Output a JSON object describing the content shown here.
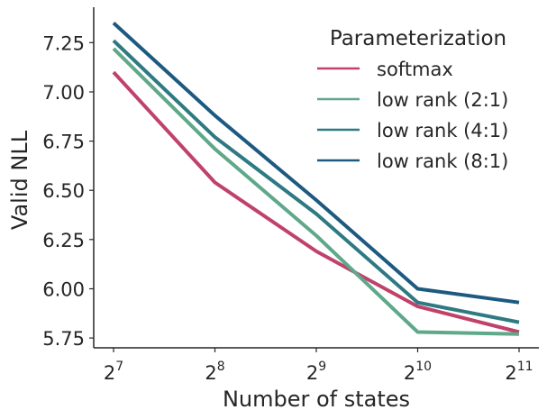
{
  "chart_data": {
    "type": "line",
    "title": "",
    "xlabel": "Number of states",
    "ylabel": "Valid NLL",
    "x_scale": "log2",
    "x": [
      128,
      256,
      512,
      1024,
      2048
    ],
    "x_tick_labels": [
      {
        "base": "2",
        "exp": "7"
      },
      {
        "base": "2",
        "exp": "8"
      },
      {
        "base": "2",
        "exp": "9"
      },
      {
        "base": "2",
        "exp": "10"
      },
      {
        "base": "2",
        "exp": "11"
      }
    ],
    "ylim": [
      5.7,
      7.43
    ],
    "y_ticks": [
      5.75,
      6.0,
      6.25,
      6.5,
      6.75,
      7.0,
      7.25
    ],
    "y_tick_labels": [
      "5.75",
      "6.00",
      "6.25",
      "6.50",
      "6.75",
      "7.00",
      "7.25"
    ],
    "grid": false,
    "legend": {
      "title": "Parameterization",
      "placement": "top-right"
    },
    "series": [
      {
        "name": "softmax",
        "color": "#c0426a",
        "values": [
          7.1,
          6.54,
          6.19,
          5.91,
          5.78
        ]
      },
      {
        "name": "low rank (2:1)",
        "color": "#5fa88a",
        "values": [
          7.22,
          6.71,
          6.27,
          5.78,
          5.77
        ]
      },
      {
        "name": "low rank (4:1)",
        "color": "#2e7a82",
        "values": [
          7.26,
          6.77,
          6.38,
          5.93,
          5.83
        ]
      },
      {
        "name": "low rank (8:1)",
        "color": "#1d5a80",
        "values": [
          7.35,
          6.88,
          6.45,
          6.0,
          5.93
        ]
      }
    ]
  }
}
